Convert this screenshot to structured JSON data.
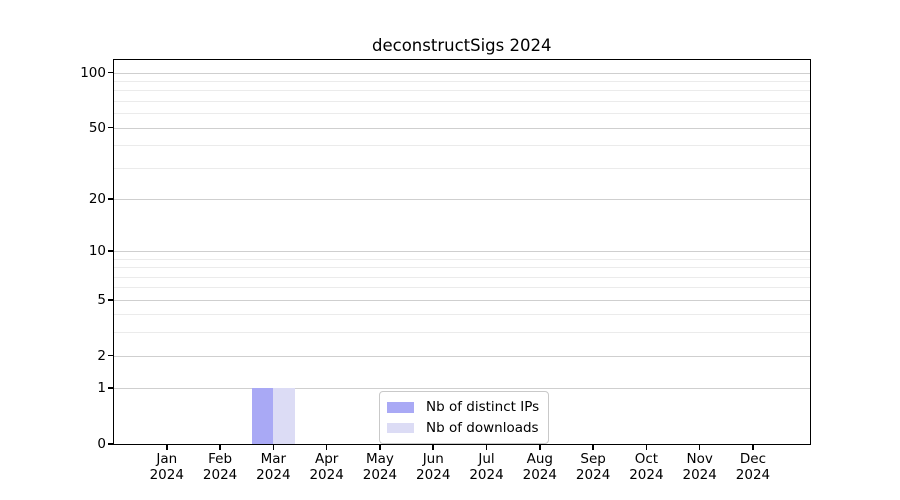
{
  "chart_data": {
    "type": "bar",
    "title": "deconstructSigs 2024",
    "categories": [
      "Jan 2024",
      "Feb 2024",
      "Mar 2024",
      "Apr 2024",
      "May 2024",
      "Jun 2024",
      "Jul 2024",
      "Aug 2024",
      "Sep 2024",
      "Oct 2024",
      "Nov 2024",
      "Dec 2024"
    ],
    "series": [
      {
        "name": "Nb of distinct IPs",
        "color": "#a9a9f5",
        "values": [
          0,
          0,
          1,
          0,
          0,
          0,
          0,
          0,
          0,
          0,
          0,
          0
        ]
      },
      {
        "name": "Nb of downloads",
        "color": "#dcdcf5",
        "values": [
          0,
          0,
          1,
          0,
          0,
          0,
          0,
          0,
          0,
          0,
          0,
          0
        ]
      }
    ],
    "xlabel": "",
    "ylabel": "",
    "yscale": "log10(1+x)",
    "ylim": [
      0,
      117
    ],
    "yticks": [
      0,
      1,
      2,
      5,
      10,
      20,
      50,
      100
    ],
    "minor_gridlines": [
      3,
      4,
      6,
      7,
      8,
      9,
      30,
      40,
      60,
      70,
      80,
      90
    ],
    "grid": true,
    "legend_position": "lower center (inside plot)"
  },
  "colors": {
    "background": "#ffffff",
    "spine": "#000000",
    "grid_major": "#cfcfcf",
    "grid_minor": "#ebebeb",
    "legend_border": "#c9c9c9",
    "distinct_ips_bar": "#a9a9f5",
    "downloads_bar": "#dcdcf5"
  }
}
